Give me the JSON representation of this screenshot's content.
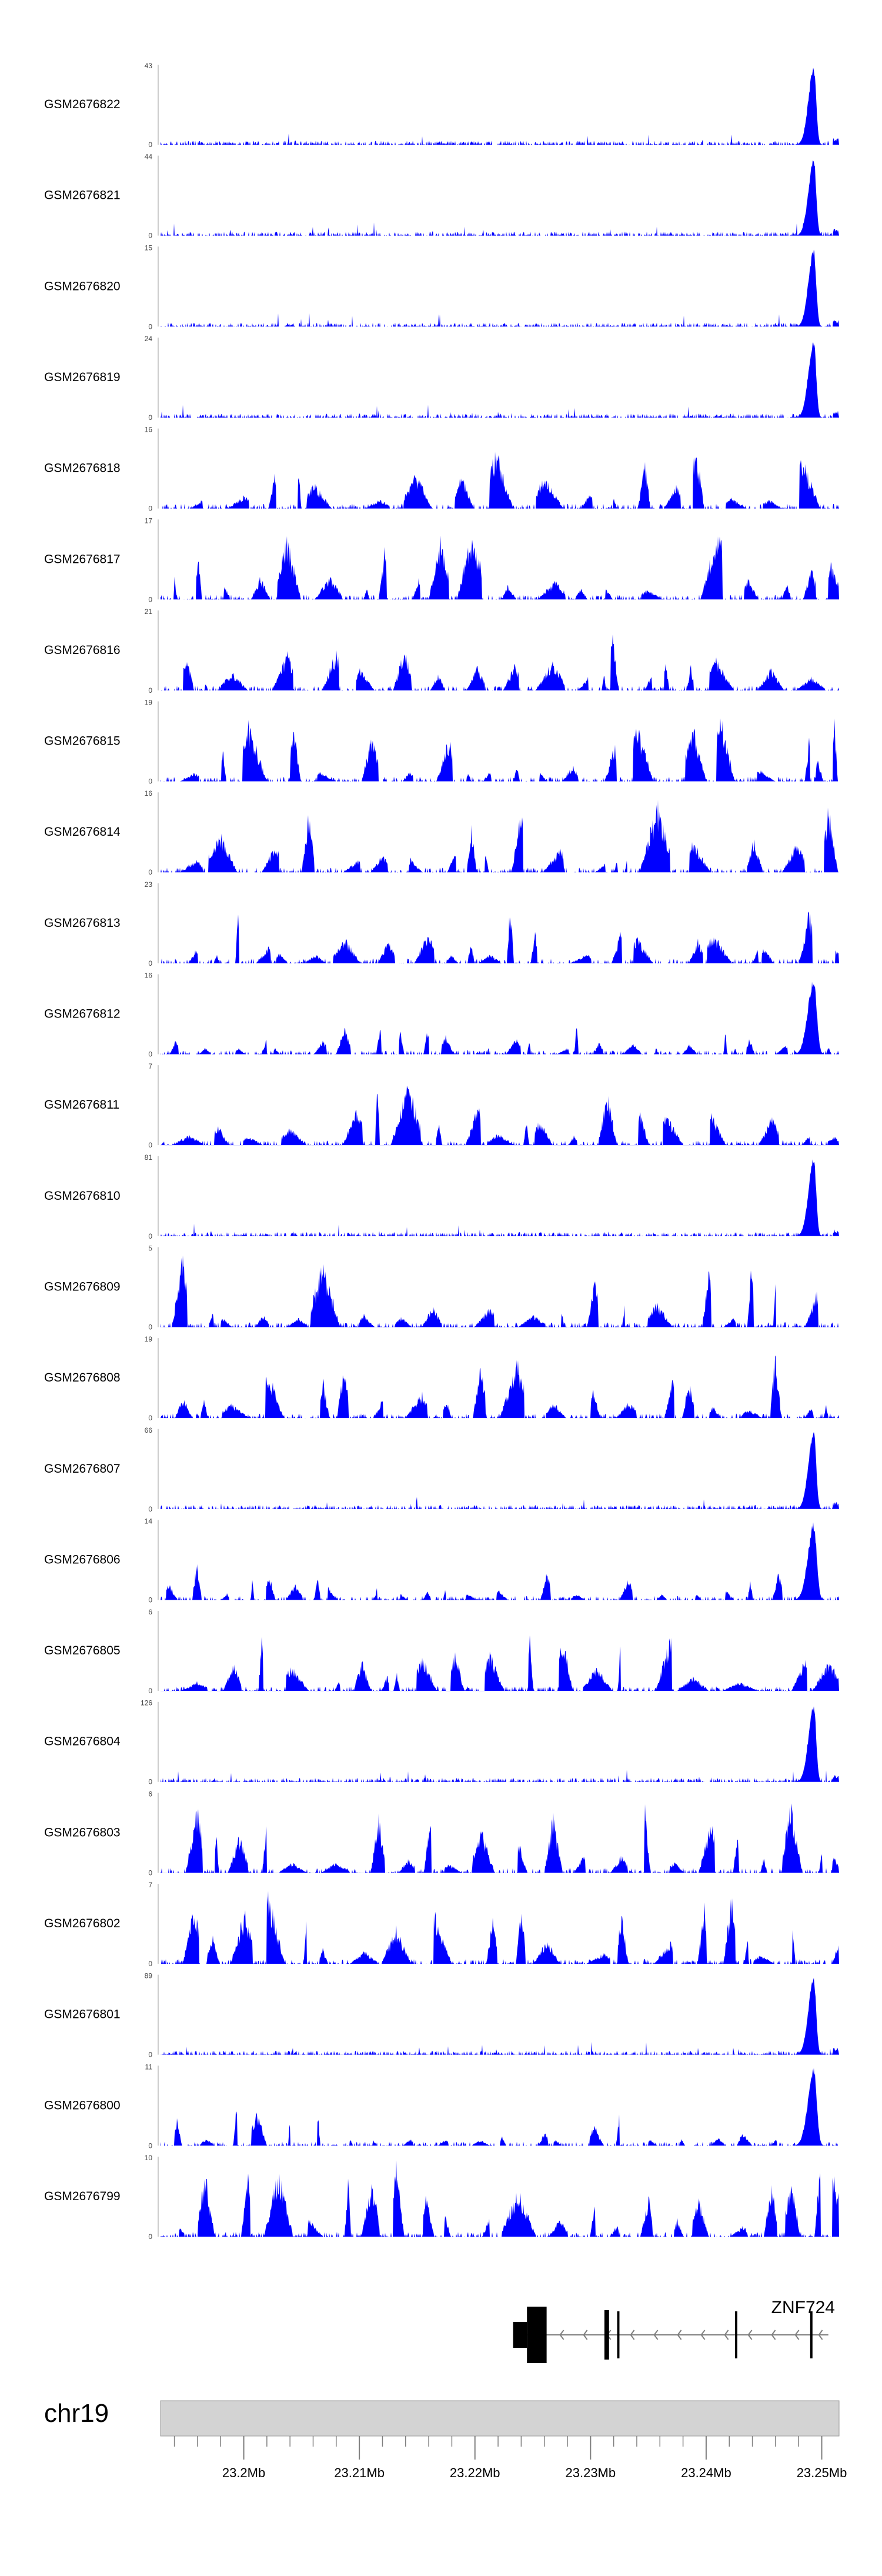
{
  "chart_data": {
    "type": "area",
    "title": "",
    "fill_color": "#0000FF",
    "track_names": [
      "GSM2676822",
      "GSM2676821",
      "GSM2676820",
      "GSM2676819",
      "GSM2676818",
      "GSM2676817",
      "GSM2676816",
      "GSM2676815",
      "GSM2676814",
      "GSM2676813",
      "GSM2676812",
      "GSM2676811",
      "GSM2676810",
      "GSM2676809",
      "GSM2676808",
      "GSM2676807",
      "GSM2676806",
      "GSM2676805",
      "GSM2676804",
      "GSM2676803",
      "GSM2676802",
      "GSM2676801",
      "GSM2676800",
      "GSM2676799"
    ],
    "track_ymax": [
      43,
      44,
      15,
      24,
      16,
      17,
      21,
      19,
      16,
      23,
      16,
      7,
      81,
      5,
      19,
      66,
      14,
      6,
      126,
      6,
      7,
      89,
      11,
      10
    ],
    "track_ymin": 0,
    "track_profiles": [
      "promoter-peak",
      "promoter-peak",
      "promoter-peak",
      "promoter-peak",
      "broad",
      "broad",
      "broad",
      "broad",
      "broad",
      "broad",
      "peak-plus-broad",
      "broad",
      "promoter-peak",
      "broad",
      "broad",
      "promoter-peak",
      "peak-plus-broad",
      "broad",
      "promoter-peak",
      "broad",
      "broad",
      "promoter-peak",
      "peak-plus-broad",
      "broad"
    ],
    "main_peak_position_mb": 23.2493,
    "gene": {
      "name": "ZNF724",
      "strand": "-",
      "tx_start_mb": 23.2233,
      "tx_end_mb": 23.2493,
      "exons_mb": [
        [
          23.2233,
          23.2245
        ],
        [
          23.2245,
          23.2262
        ],
        [
          23.2312,
          23.2316
        ],
        [
          23.2323,
          23.2325
        ],
        [
          23.2425,
          23.2427
        ],
        [
          23.249,
          23.2492
        ]
      ]
    },
    "chromosome": "chr19",
    "x_range_mb": [
      23.1928,
      23.2515
    ],
    "major_ticks_mb": [
      23.2,
      23.21,
      23.22,
      23.23,
      23.24,
      23.25
    ],
    "tick_labels": [
      "23.2Mb",
      "23.21Mb",
      "23.22Mb",
      "23.23Mb",
      "23.24Mb",
      "23.25Mb"
    ],
    "minor_tick_step_mb": 0.002
  }
}
